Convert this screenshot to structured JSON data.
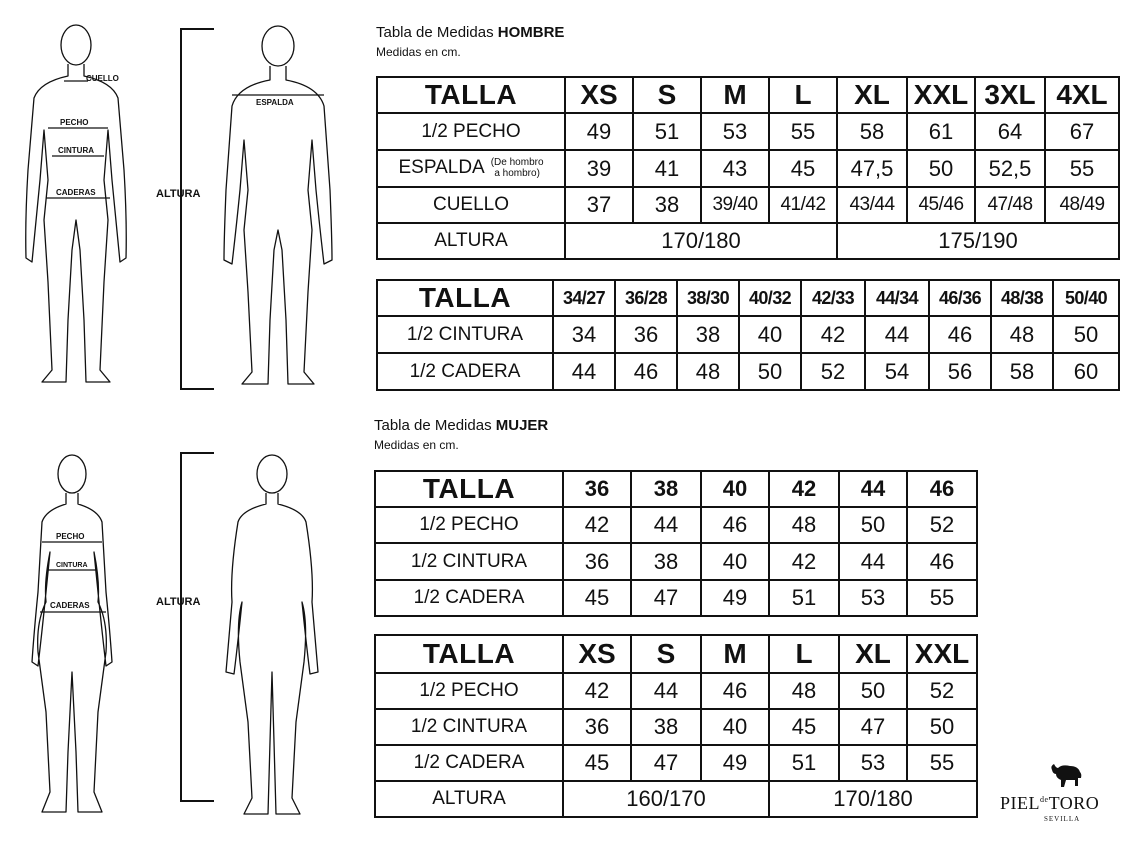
{
  "men": {
    "heading_prefix": "Tabla de Medidas ",
    "heading_bold": "HOMBRE",
    "subheading": "Medidas en cm.",
    "figure_labels": {
      "cuello": "CUELLO",
      "pecho": "PECHO",
      "cintura": "CINTURA",
      "caderas": "CADERAS",
      "espalda": "ESPALDA",
      "altura": "ALTURA"
    },
    "table1": {
      "header": "TALLA",
      "sizes": [
        "XS",
        "S",
        "M",
        "L",
        "XL",
        "XXL",
        "3XL",
        "4XL"
      ],
      "rows": [
        {
          "label": "1/2 PECHO",
          "values": [
            "49",
            "51",
            "53",
            "55",
            "58",
            "61",
            "64",
            "67"
          ]
        },
        {
          "label": "ESPALDA",
          "note_line1": "(De hombro",
          "note_line2": "a hombro)",
          "values": [
            "39",
            "41",
            "43",
            "45",
            "47,5",
            "50",
            "52,5",
            "55"
          ]
        },
        {
          "label": "CUELLO",
          "values": [
            "37",
            "38",
            "39/40",
            "41/42",
            "43/44",
            "45/46",
            "47/48",
            "48/49"
          ]
        }
      ],
      "altura": {
        "label": "ALTURA",
        "group1": "170/180",
        "group2": "175/190"
      }
    },
    "table2": {
      "header": "TALLA",
      "sizes": [
        "34/27",
        "36/28",
        "38/30",
        "40/32",
        "42/33",
        "44/34",
        "46/36",
        "48/38",
        "50/40"
      ],
      "rows": [
        {
          "label": "1/2 CINTURA",
          "values": [
            "34",
            "36",
            "38",
            "40",
            "42",
            "44",
            "46",
            "48",
            "50"
          ]
        },
        {
          "label": "1/2 CADERA",
          "values": [
            "44",
            "46",
            "48",
            "50",
            "52",
            "54",
            "56",
            "58",
            "60"
          ]
        }
      ]
    }
  },
  "women": {
    "heading_prefix": "Tabla de Medidas ",
    "heading_bold": "MUJER",
    "subheading": "Medidas en cm.",
    "figure_labels": {
      "pecho": "PECHO",
      "cintura": "CINTURA",
      "caderas": "CADERAS",
      "altura": "ALTURA"
    },
    "table1": {
      "header": "TALLA",
      "sizes": [
        "36",
        "38",
        "40",
        "42",
        "44",
        "46"
      ],
      "rows": [
        {
          "label": "1/2 PECHO",
          "values": [
            "42",
            "44",
            "46",
            "48",
            "50",
            "52"
          ]
        },
        {
          "label": "1/2 CINTURA",
          "values": [
            "36",
            "38",
            "40",
            "42",
            "44",
            "46"
          ]
        },
        {
          "label": "1/2 CADERA",
          "values": [
            "45",
            "47",
            "49",
            "51",
            "53",
            "55"
          ]
        }
      ]
    },
    "table2": {
      "header": "TALLA",
      "sizes": [
        "XS",
        "S",
        "M",
        "L",
        "XL",
        "XXL"
      ],
      "rows": [
        {
          "label": "1/2 PECHO",
          "values": [
            "42",
            "44",
            "46",
            "48",
            "50",
            "52"
          ]
        },
        {
          "label": "1/2 CINTURA",
          "values": [
            "36",
            "38",
            "40",
            "45",
            "47",
            "50"
          ]
        },
        {
          "label": "1/2 CADERA",
          "values": [
            "45",
            "47",
            "49",
            "51",
            "53",
            "55"
          ]
        }
      ],
      "altura": {
        "label": "ALTURA",
        "group1": "160/170",
        "group2": "170/180"
      }
    }
  },
  "brand": {
    "name_part1": "PIEL",
    "name_small": "de",
    "name_part2": "TORO",
    "city": "SEVILLA",
    "logo_icon": "bull-icon"
  }
}
